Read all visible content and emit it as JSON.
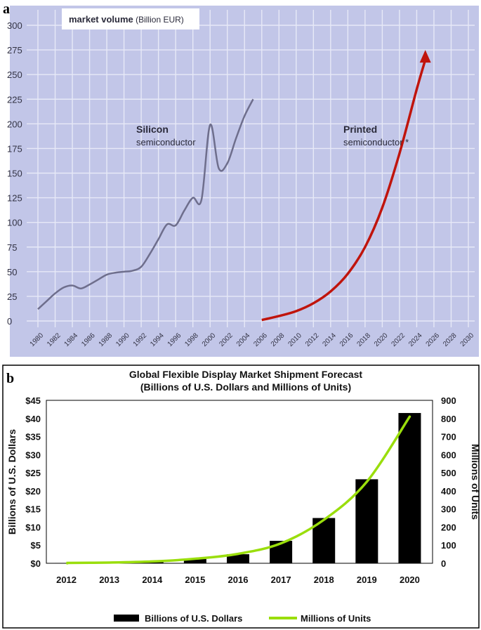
{
  "panels": {
    "a": {
      "letter": "a",
      "header_bold": "market volume",
      "header_regular": " (Billion EUR)",
      "annotations": [
        {
          "bold": "Silicon",
          "regular": "semiconductor"
        },
        {
          "bold": "Printed",
          "regular": "semiconductor *"
        }
      ]
    },
    "b": {
      "letter": "b",
      "title_line1": "Global Flexible Display Market Shipment Forecast",
      "title_line2": "(Billions of U.S. Dollars and Millions of Units)"
    }
  },
  "chart_data": [
    {
      "type": "line",
      "title": "market volume (Billion EUR)",
      "xlabel": "",
      "ylabel": "",
      "xlim": [
        1980,
        2030
      ],
      "ylim": [
        0,
        300
      ],
      "grid": true,
      "x_ticks": [
        1980,
        1982,
        1984,
        1986,
        1988,
        1990,
        1992,
        1994,
        1996,
        1998,
        2000,
        2002,
        2004,
        2006,
        2008,
        2010,
        2012,
        2014,
        2016,
        2018,
        2020,
        2022,
        2024,
        2026,
        2028,
        2030
      ],
      "y_ticks": [
        0,
        25,
        50,
        75,
        100,
        125,
        150,
        175,
        200,
        225,
        250,
        275,
        300
      ],
      "series": [
        {
          "name": "Silicon semiconductor",
          "color": "#6e6e8c",
          "x": [
            1980,
            1981,
            1982,
            1983,
            1984,
            1985,
            1986,
            1987,
            1988,
            1989,
            1990,
            1991,
            1992,
            1993,
            1994,
            1995,
            1996,
            1997,
            1998,
            1999,
            2000,
            2001,
            2002,
            2003,
            2004,
            2005
          ],
          "y": [
            12,
            20,
            28,
            34,
            36,
            33,
            37,
            42,
            47,
            49,
            50,
            51,
            55,
            68,
            83,
            98,
            97,
            112,
            125,
            123,
            199,
            155,
            160,
            185,
            208,
            225
          ]
        },
        {
          "name": "Printed semiconductor *",
          "color": "#c0140c",
          "x": [
            2006,
            2008,
            2010,
            2012,
            2014,
            2016,
            2018,
            2020,
            2022,
            2024,
            2025
          ],
          "y": [
            1,
            5,
            10,
            18,
            30,
            48,
            75,
            115,
            170,
            235,
            265
          ]
        }
      ]
    },
    {
      "type": "bar",
      "title": "Global Flexible Display Market Shipment Forecast (Billions of U.S. Dollars and Millions of Units)",
      "xlabel": "",
      "ylabel": "Billions of U.S. Dollars",
      "y2label": "Millions of Units",
      "categories": [
        "2012",
        "2013",
        "2014",
        "2015",
        "2016",
        "2017",
        "2018",
        "2019",
        "2020"
      ],
      "ylim": [
        0,
        45
      ],
      "y_ticks": [
        "$0",
        "$5",
        "$10",
        "$15",
        "$20",
        "$25",
        "$30",
        "$35",
        "$40",
        "$45"
      ],
      "y2lim": [
        0,
        900
      ],
      "y2_ticks": [
        0,
        100,
        200,
        300,
        400,
        500,
        600,
        700,
        800,
        900
      ],
      "series": [
        {
          "name": "Billions of U.S. Dollars",
          "color": "#000000",
          "axis": "left",
          "values": [
            0.1,
            0.2,
            0.5,
            1.2,
            2.5,
            6.2,
            12.5,
            23.2,
            41.5
          ]
        },
        {
          "name": "Millions of Units",
          "color": "#9ade0c",
          "axis": "right",
          "type": "line",
          "values": [
            2,
            4,
            10,
            25,
            52,
            110,
            240,
            450,
            810
          ]
        }
      ],
      "legend": "bottom"
    }
  ]
}
